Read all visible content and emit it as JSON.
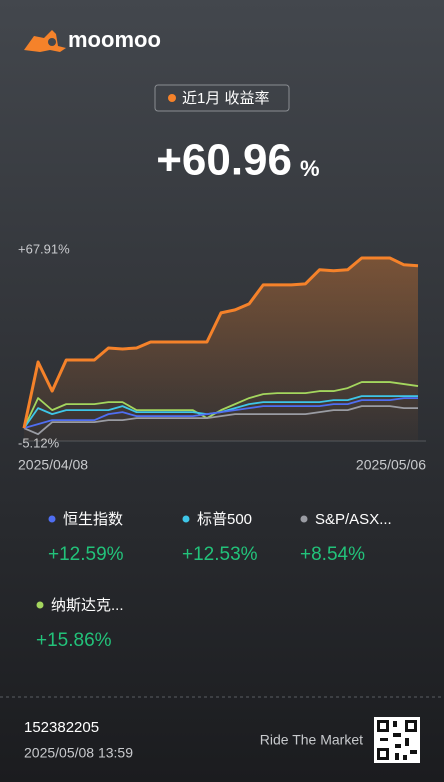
{
  "header": {
    "brand": "moomoo",
    "period": "近1月 收益率",
    "return_value": "+60.96",
    "return_unit": "%"
  },
  "chart_data": {
    "type": "line",
    "categories": [
      "2025/04/08",
      null,
      null,
      null,
      null,
      null,
      null,
      null,
      null,
      null,
      null,
      null,
      null,
      null,
      null,
      null,
      null,
      null,
      null,
      null,
      null,
      null,
      null,
      null,
      null,
      null,
      null,
      null,
      "2025/05/06"
    ],
    "series": [
      {
        "name": "近1月 收益率",
        "color": "#f5822a",
        "values": [
          0,
          26.4,
          14.8,
          27.2,
          27.2,
          27.2,
          32,
          31.6,
          32,
          34.4,
          34.4,
          34.4,
          34.4,
          34.4,
          46,
          47.2,
          49.6,
          57.2,
          57.2,
          57.2,
          57.6,
          63.2,
          62.8,
          63.2,
          67.91,
          67.91,
          67.91,
          65.2,
          64.8
        ]
      },
      {
        "name": "恒生指数",
        "color": "#4f6ef2",
        "total_return": "+12.59%",
        "values": [
          0,
          1.6,
          3.2,
          3.2,
          3.2,
          3.2,
          5.6,
          6.4,
          4.8,
          4.8,
          4.8,
          4.8,
          4.8,
          5.6,
          6.4,
          7.2,
          8,
          8.8,
          8.8,
          8.8,
          8.8,
          8.8,
          9.6,
          9.6,
          11.2,
          11.2,
          11.2,
          12,
          12
        ]
      },
      {
        "name": "标普500",
        "color": "#3ec6e8",
        "total_return": "+12.53%",
        "values": [
          0,
          8,
          5.6,
          7.2,
          7.2,
          7.2,
          7.2,
          8.8,
          6.4,
          6.4,
          6.4,
          6.4,
          6.4,
          5.6,
          6.4,
          8,
          9.6,
          10.4,
          10.4,
          10.4,
          10.4,
          10.4,
          11.2,
          11.2,
          12.8,
          12.8,
          12.8,
          12.8,
          12.8
        ]
      },
      {
        "name": "S&P/ASX...",
        "color": "#9a9ca3",
        "total_return": "+8.54%",
        "values": [
          0,
          -2.4,
          2.4,
          2.4,
          2.4,
          2.4,
          3.2,
          3.2,
          4,
          4,
          4,
          4,
          4,
          4,
          4.8,
          5.6,
          5.6,
          5.6,
          5.6,
          5.6,
          5.6,
          6.4,
          7.2,
          7.2,
          8.8,
          8.8,
          8.8,
          8,
          8
        ]
      },
      {
        "name": "纳斯达克...",
        "color": "#a4d65e",
        "total_return": "+15.86%",
        "values": [
          0,
          12,
          7.2,
          9.6,
          9.6,
          9.6,
          10.4,
          10.4,
          7.2,
          7.2,
          7.2,
          7.2,
          7.2,
          4,
          7.2,
          9.6,
          12,
          13.6,
          14,
          14,
          14,
          14.8,
          14.8,
          16,
          18.4,
          18.4,
          18.4,
          17.6,
          16.8
        ]
      }
    ],
    "ylim": [
      -5.12,
      67.91
    ],
    "yticks": [
      {
        "value": 67.91,
        "label": "+67.91%"
      },
      {
        "value": -5.12,
        "label": "-5.12%"
      }
    ]
  },
  "footer": {
    "account": "152382205",
    "timestamp": "2025/05/08 13:59",
    "slogan": "Ride The Market"
  }
}
